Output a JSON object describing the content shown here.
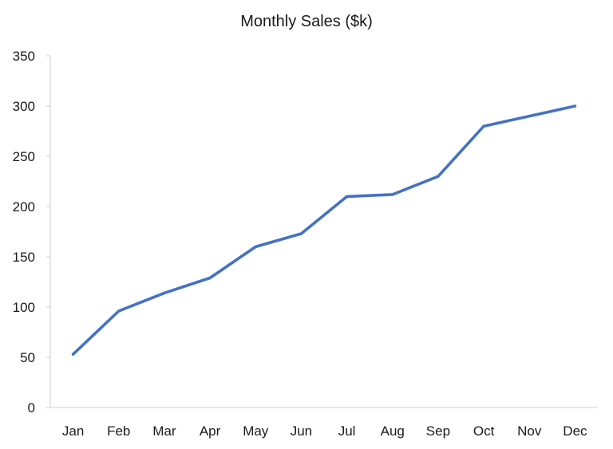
{
  "chart_data": {
    "type": "line",
    "title": "Monthly Sales ($k)",
    "xlabel": "",
    "ylabel": "",
    "categories": [
      "Jan",
      "Feb",
      "Mar",
      "Apr",
      "May",
      "Jun",
      "Jul",
      "Aug",
      "Sep",
      "Oct",
      "Nov",
      "Dec"
    ],
    "series": [
      {
        "name": "Sales",
        "values": [
          53,
          96,
          114,
          129,
          160,
          173,
          210,
          212,
          230,
          280,
          290,
          300
        ],
        "color": "#4472C4"
      }
    ],
    "ylim": [
      0,
      350
    ],
    "yticks": [
      0,
      50,
      100,
      150,
      200,
      250,
      300,
      350
    ],
    "grid": false,
    "legend": "none"
  },
  "colors": {
    "line": "#4472C4",
    "axis": "#D9D9D9",
    "text": "#1a1a1a"
  }
}
